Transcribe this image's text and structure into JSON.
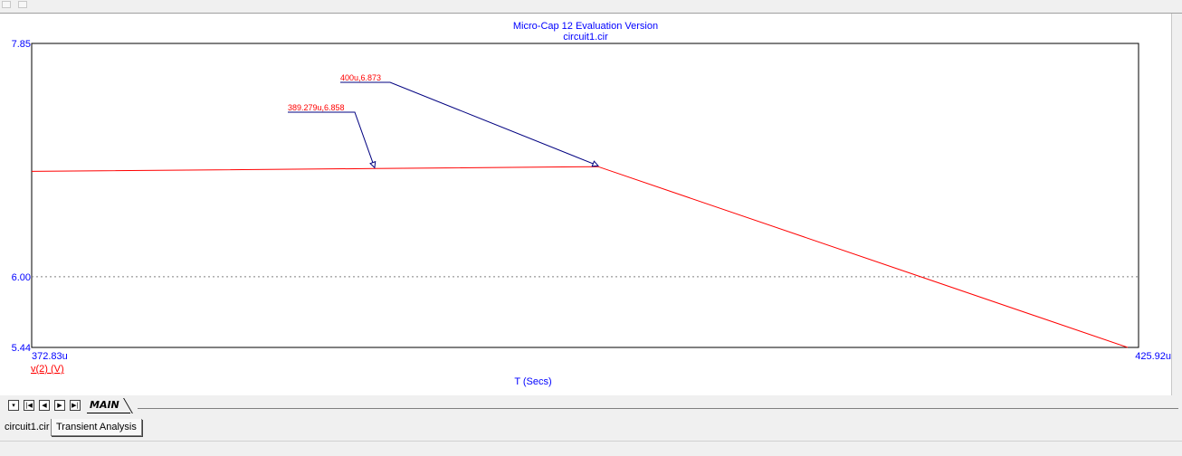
{
  "window": {
    "sheet_tab": "MAIN"
  },
  "doc_tabs": [
    "circuit1.cir",
    "Transient Analysis"
  ],
  "sheet_nav": [
    "▾",
    "|◀",
    "◀",
    "▶",
    "▶|"
  ],
  "colors": {
    "plot_bg": "#ffffff",
    "axis_text": "#0000ff",
    "trace": "#ff0000",
    "tag_text": "#ff0000",
    "leader": "#000080",
    "grid": "#808080"
  },
  "chart_data": {
    "type": "line",
    "title": "Micro-Cap 12 Evaluation Version",
    "subtitle": "circuit1.cir",
    "xlabel": "T (Secs)",
    "ylabel": "v(2) (V)",
    "xlim": [
      372.83,
      425.92
    ],
    "ylim": [
      5.44,
      7.85
    ],
    "x_tick_labels": [
      "372.83u",
      "425.92u"
    ],
    "y_ticks": [
      {
        "value": 7.85,
        "label": "7.85"
      },
      {
        "value": 6.0,
        "label": "6.00"
      },
      {
        "value": 5.44,
        "label": "5.44"
      }
    ],
    "grid": {
      "horizontal_at": [
        6.0
      ],
      "style": "dotted"
    },
    "series": [
      {
        "name": "v(2) (V)",
        "x": [
          372.83,
          389.279,
          400.0,
          425.4
        ],
        "y": [
          6.836,
          6.858,
          6.873,
          5.44
        ]
      }
    ],
    "annotations": [
      {
        "label": "389.279u,6.858",
        "x": 389.279,
        "y": 6.858
      },
      {
        "label": "400u,6.873",
        "x": 400.0,
        "y": 6.873
      }
    ]
  }
}
